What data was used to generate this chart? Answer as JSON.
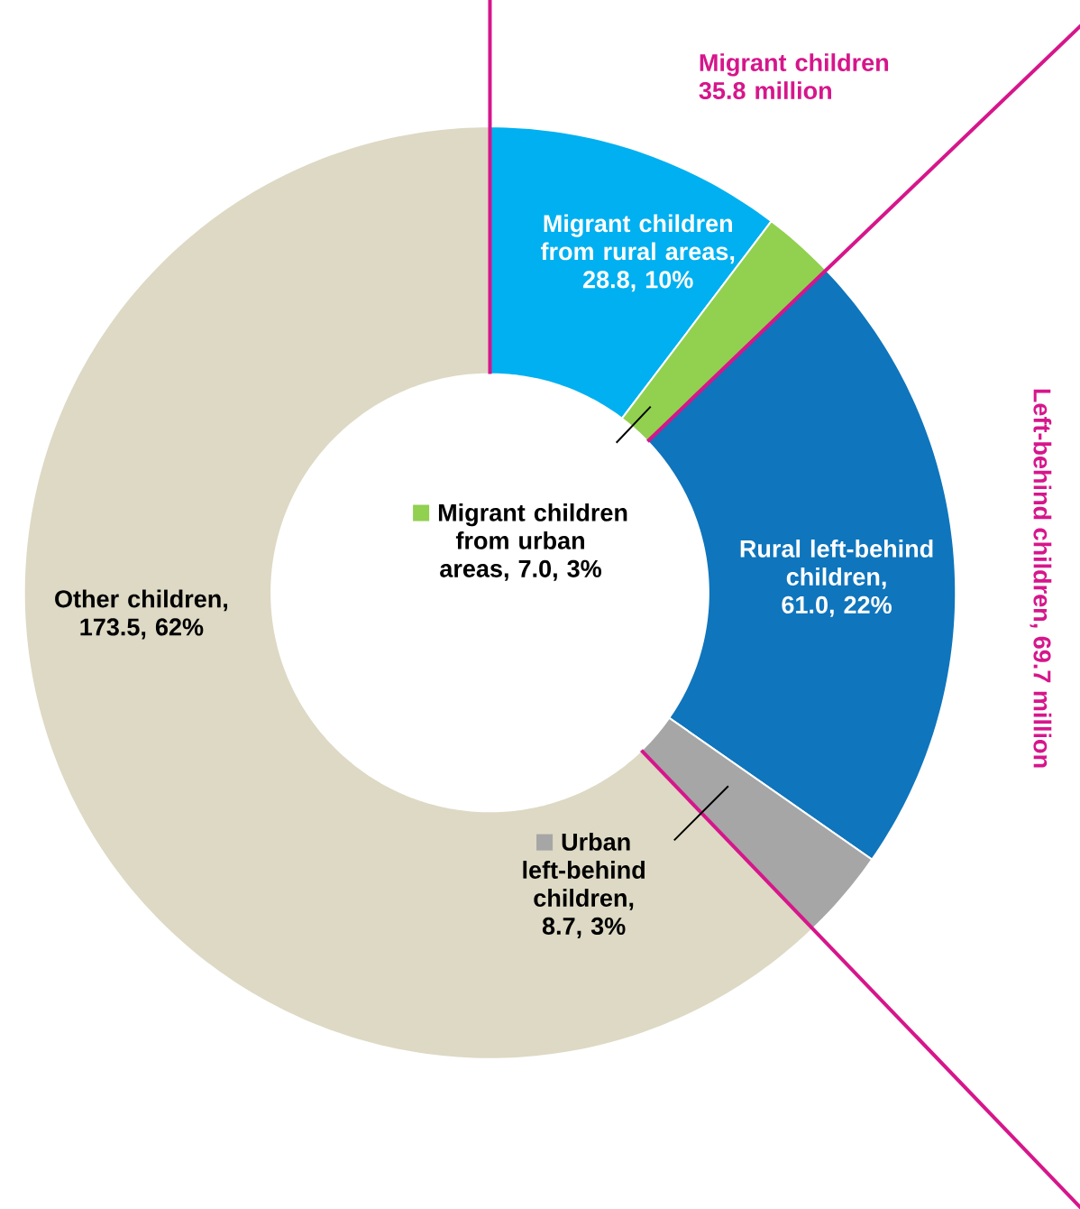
{
  "chart_data": {
    "type": "donut",
    "categories": [
      "Migrant children from rural areas",
      "Migrant children from urban areas",
      "Rural left-behind children",
      "Urban left-behind children",
      "Other children"
    ],
    "values": [
      28.8,
      7.0,
      61.0,
      8.7,
      173.5
    ],
    "colors": [
      "#00b0f0",
      "#92d050",
      "#0f75bc",
      "#a6a6a6",
      "#ddd9c4"
    ],
    "value_labels": [
      ", 28.8, 10%",
      ", 7.0, 3%",
      ", 61.0, 22%",
      ", 8.7, 3%",
      ", 173.5, 62%"
    ],
    "legend": "center",
    "annotations": [
      "Migrant children 35.8 million",
      "Left-behind children, 69.7 million"
    ]
  }
}
